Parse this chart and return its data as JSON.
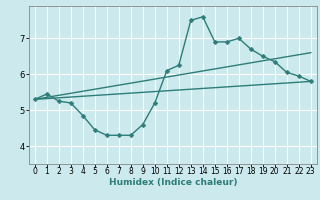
{
  "xlabel": "Humidex (Indice chaleur)",
  "bg_color": "#cce9ed",
  "grid_color": "#ffffff",
  "line_color": "#2d7d78",
  "xlim": [
    -0.5,
    23.5
  ],
  "ylim": [
    3.5,
    7.9
  ],
  "xticks": [
    0,
    1,
    2,
    3,
    4,
    5,
    6,
    7,
    8,
    9,
    10,
    11,
    12,
    13,
    14,
    15,
    16,
    17,
    18,
    19,
    20,
    21,
    22,
    23
  ],
  "yticks": [
    4,
    5,
    6,
    7
  ],
  "line1_x": [
    0,
    1,
    2,
    3,
    4,
    5,
    6,
    7,
    8,
    9,
    10,
    11,
    12,
    13,
    14,
    15,
    16,
    17,
    18,
    19,
    20,
    21,
    22,
    23
  ],
  "line1_y": [
    5.3,
    5.45,
    5.25,
    5.2,
    4.85,
    4.45,
    4.3,
    4.3,
    4.3,
    4.6,
    5.2,
    6.1,
    6.25,
    7.5,
    7.6,
    6.9,
    6.9,
    7.0,
    6.7,
    6.5,
    6.35,
    6.05,
    5.95,
    5.8
  ],
  "line2_x": [
    0,
    23
  ],
  "line2_y": [
    5.3,
    5.8
  ],
  "line3_x": [
    0,
    23
  ],
  "line3_y": [
    5.3,
    6.6
  ],
  "marker": "D",
  "markersize": 2.5,
  "linewidth": 1.0,
  "tick_fontsize": 5.5,
  "xlabel_fontsize": 6.5
}
